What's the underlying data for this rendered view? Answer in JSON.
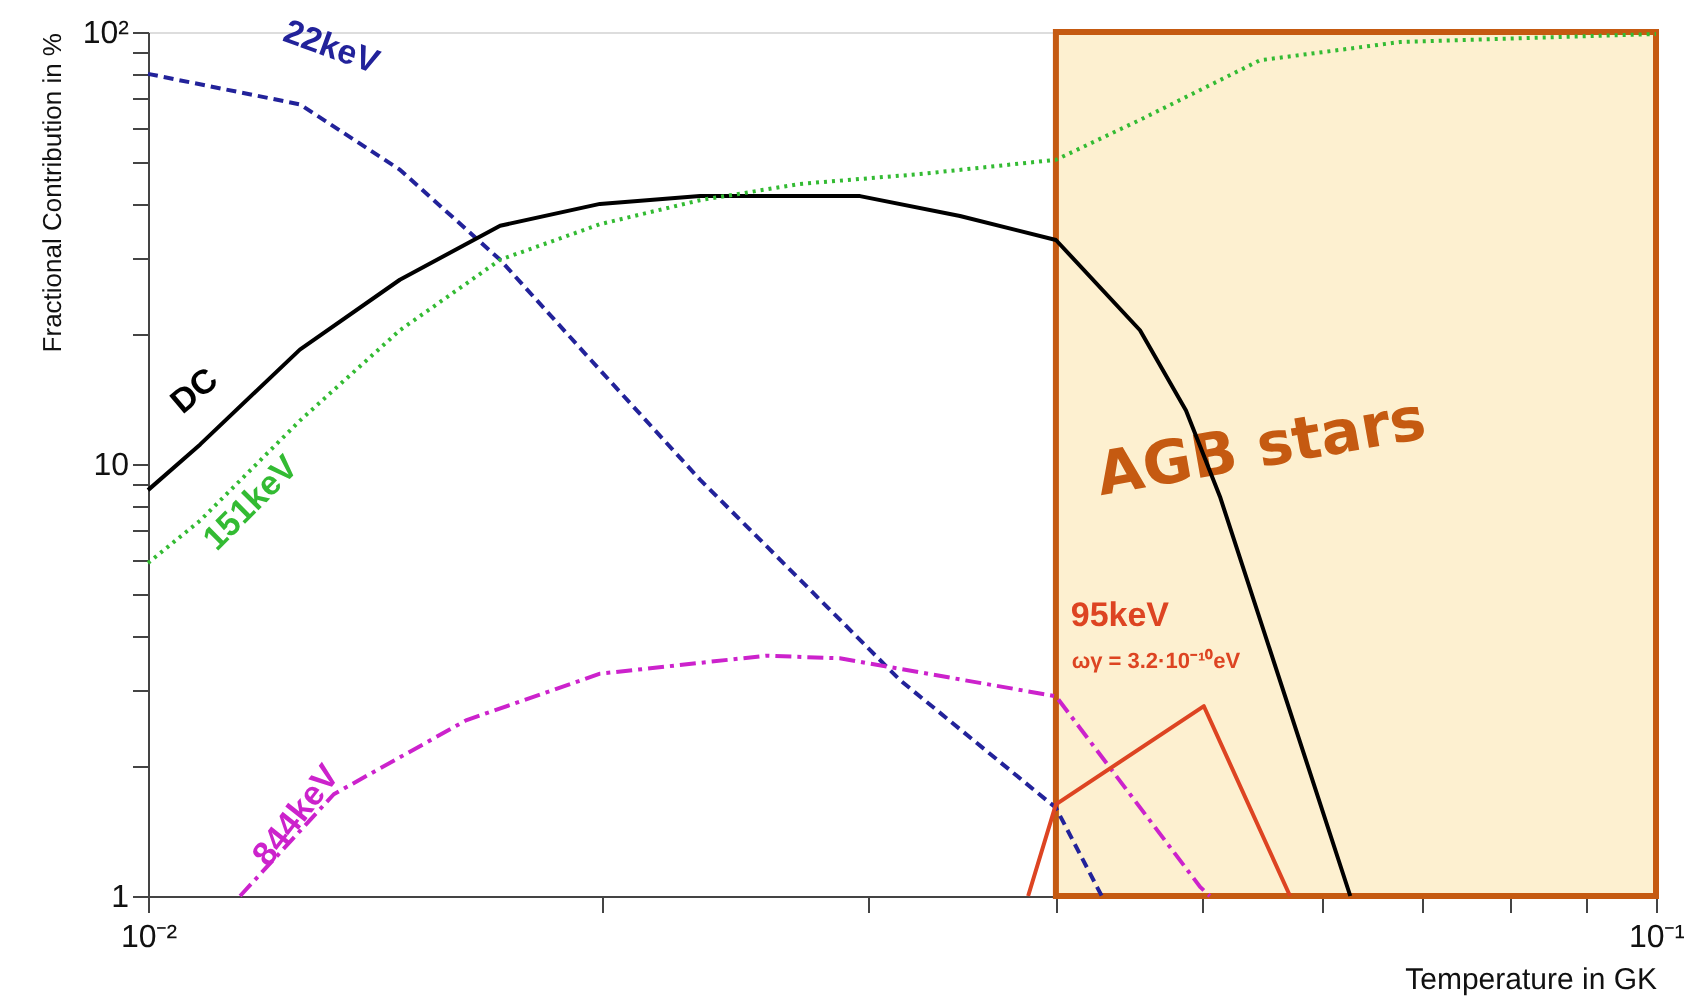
{
  "chart_data": {
    "type": "line",
    "xlabel": "Temperature in GK",
    "ylabel": "Fractional Contribution in %",
    "log": "xy",
    "grid": false,
    "marker": "none",
    "xlim": [
      0.01,
      0.1
    ],
    "ylim": [
      1,
      100
    ],
    "xticks": [
      {
        "value": 0.01,
        "label": "10⁻²"
      },
      {
        "value": 0.02,
        "label": null
      },
      {
        "value": 0.03,
        "label": null
      },
      {
        "value": 0.04,
        "label": null
      },
      {
        "value": 0.05,
        "label": null
      },
      {
        "value": 0.06,
        "label": null
      },
      {
        "value": 0.07,
        "label": null
      },
      {
        "value": 0.08,
        "label": null
      },
      {
        "value": 0.09,
        "label": null
      },
      {
        "value": 0.1,
        "label": "10⁻¹"
      }
    ],
    "yticks": [
      1,
      {
        "value": 2,
        "label": null
      },
      {
        "value": 3,
        "label": null
      },
      {
        "value": 4,
        "label": null
      },
      {
        "value": 5,
        "label": null
      },
      {
        "value": 6,
        "label": null
      },
      {
        "value": 7,
        "label": null
      },
      {
        "value": 8,
        "label": null
      },
      {
        "value": 9,
        "label": null
      },
      10,
      {
        "value": 20,
        "label": null
      },
      {
        "value": 30,
        "label": null
      },
      {
        "value": 40,
        "label": null
      },
      {
        "value": 50,
        "label": null
      },
      {
        "value": 60,
        "label": null
      },
      {
        "value": 70,
        "label": null
      },
      {
        "value": 80,
        "label": null
      },
      {
        "value": 90,
        "label": null
      },
      {
        "value": 100,
        "label": "10²"
      }
    ],
    "series": [
      {
        "name": "22keV",
        "color": "#22229a",
        "line_style": "dashed",
        "x": [
          0.01,
          0.01261,
          0.01469,
          0.01712,
          0.01994,
          0.02323,
          0.02706,
          0.03153,
          0.04,
          0.0429
        ],
        "values": [
          80,
          68,
          48,
          29.7,
          16.5,
          9.2,
          5.4,
          3.16,
          1.6,
          1
        ]
      },
      {
        "name": "DC",
        "color": "#000000",
        "line_style": "solid",
        "x": [
          0.01,
          0.01083,
          0.01261,
          0.01469,
          0.01712,
          0.01994,
          0.02323,
          0.02966,
          0.03455,
          0.04,
          0.04548,
          0.04879,
          0.05139,
          0.0627
        ],
        "values": [
          8.7,
          11.1,
          18.4,
          26.7,
          35.6,
          40,
          41.7,
          41.7,
          37.5,
          33,
          20.4,
          13.3,
          8.4,
          1
        ]
      },
      {
        "name": "151keV",
        "color": "#33bb33",
        "line_style": "dotted",
        "x": [
          0.01,
          0.01083,
          0.01261,
          0.01469,
          0.01712,
          0.01994,
          0.02323,
          0.02706,
          0.03251,
          0.04,
          0.04548,
          0.05462,
          0.06766,
          0.1
        ],
        "values": [
          5.9,
          7.4,
          12.6,
          20.4,
          29.7,
          35.9,
          40.8,
          44.5,
          46.9,
          50.6,
          62.6,
          86,
          94.8,
          98.9
        ]
      },
      {
        "name": "844keV",
        "color": "#cc22cc",
        "line_style": "dashdot",
        "x": [
          0.01151,
          0.01328,
          0.01625,
          0.01994,
          0.0257,
          0.02876,
          0.04,
          0.04985,
          0.0506
        ],
        "values": [
          1,
          1.72,
          2.55,
          3.27,
          3.6,
          3.55,
          2.9,
          1.05,
          1
        ]
      },
      {
        "name": "95keV",
        "color": "#dd4422",
        "line_style": "solid",
        "x": [
          0.03834,
          0.04,
          0.05014,
          0.05719
        ],
        "values": [
          1,
          1.63,
          2.75,
          1
        ]
      }
    ],
    "bands": [
      {
        "axis": "x",
        "from": 0.04,
        "to": 0.1,
        "label": "AGB stars",
        "color": "#fdf0d0"
      }
    ],
    "annotations": [
      "ωγ = 3.2·10⁻¹⁰eV"
    ]
  }
}
